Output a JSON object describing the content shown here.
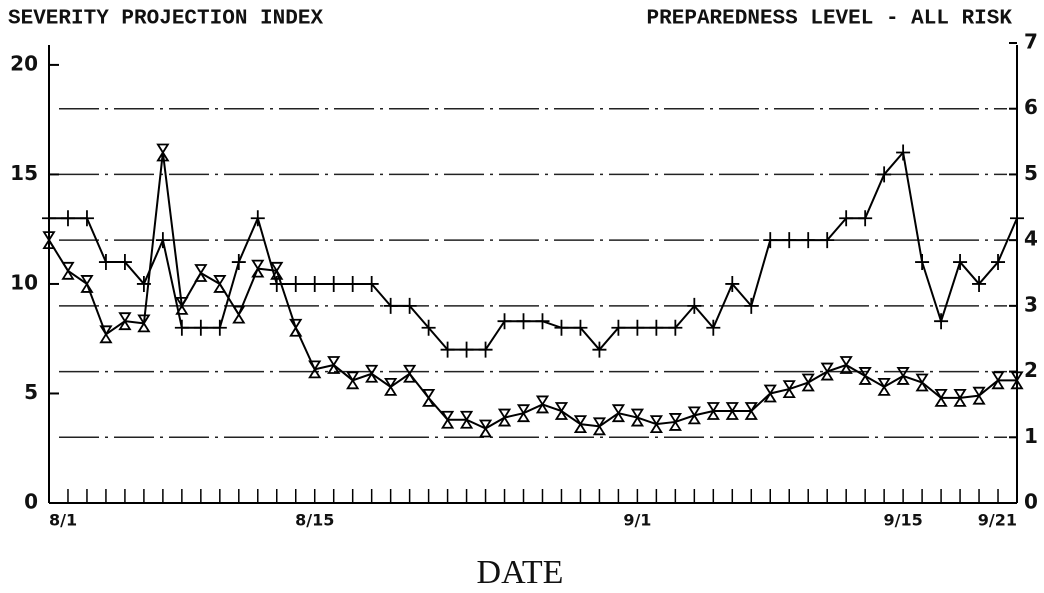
{
  "chart_data": {
    "type": "line",
    "title": "SEVERITY PROJECTION INDEX",
    "title_right": "PREPAREDNESS LEVEL - ALL RISK",
    "x_label": "DATE",
    "categories": [
      "8/1",
      null,
      null,
      null,
      null,
      null,
      null,
      null,
      null,
      null,
      null,
      null,
      null,
      null,
      "8/15",
      null,
      null,
      null,
      null,
      null,
      null,
      null,
      null,
      null,
      null,
      null,
      null,
      null,
      null,
      null,
      null,
      "9/1",
      null,
      null,
      null,
      null,
      null,
      null,
      null,
      null,
      null,
      null,
      null,
      null,
      null,
      "9/15",
      null,
      null,
      null,
      null,
      null,
      "9/21"
    ],
    "series": [
      {
        "color": "#000000",
        "marker": "plus",
        "values": [
          13,
          13,
          13,
          11,
          11,
          10,
          12,
          8,
          8,
          8,
          11,
          13,
          10,
          10,
          10,
          10,
          10,
          10,
          9,
          9,
          8,
          7,
          7,
          7,
          8.3,
          8.3,
          8.3,
          8,
          8,
          7,
          8,
          8,
          8,
          8,
          9,
          8,
          10,
          9,
          12,
          12,
          12,
          12,
          13,
          13,
          15,
          16,
          11,
          8.3,
          11,
          10,
          11,
          13
        ]
      },
      {
        "color": "#000000",
        "marker": "hourglass",
        "values": [
          12,
          10.6,
          10,
          7.7,
          8.3,
          8.2,
          16,
          9,
          10.5,
          10,
          8.6,
          10.7,
          10.6,
          8,
          6.1,
          6.3,
          5.6,
          5.9,
          5.3,
          5.9,
          4.8,
          3.8,
          3.8,
          3.4,
          3.9,
          4.1,
          4.5,
          4.2,
          3.6,
          3.5,
          4.1,
          3.9,
          3.6,
          3.7,
          4,
          4.2,
          4.2,
          4.2,
          5,
          5.2,
          5.5,
          6,
          6.3,
          5.8,
          5.3,
          5.8,
          5.5,
          4.8,
          4.8,
          4.9,
          5.6,
          5.6
        ]
      }
    ],
    "ylim": [
      0,
      21
    ],
    "yticks": [
      0,
      5,
      10,
      15,
      20
    ],
    "y2lim": [
      0,
      7
    ],
    "y2ticks": [
      0,
      1,
      2,
      3,
      4,
      5,
      6,
      7
    ],
    "grid": true
  }
}
